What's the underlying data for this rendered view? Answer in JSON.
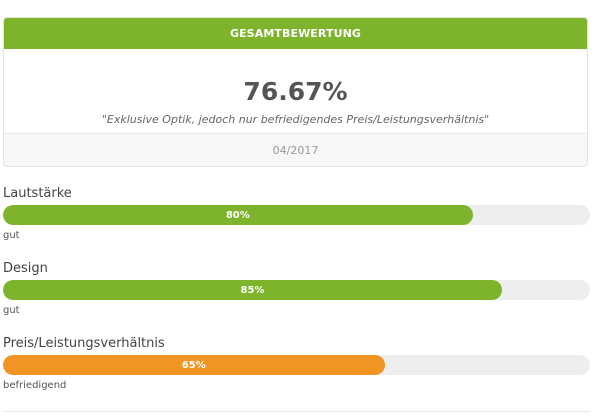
{
  "header": {
    "title": "GESAMTBEWERTUNG"
  },
  "summary": {
    "score": "76.67%",
    "verdict": "\"Exklusive Optik, jedoch nur befriedigendes Preis/Leistungsverhältnis\"",
    "date": "04/2017"
  },
  "colors": {
    "good": "#7db42c",
    "satisfactory": "#f29423",
    "track": "#eeeeee"
  },
  "ratings": [
    {
      "label": "Lautstärke",
      "value": 80,
      "value_label": "80%",
      "grade": "gut",
      "color": "#7db42c"
    },
    {
      "label": "Design",
      "value": 85,
      "value_label": "85%",
      "grade": "gut",
      "color": "#7db42c"
    },
    {
      "label": "Preis/Leistungsverhältnis",
      "value": 65,
      "value_label": "65%",
      "grade": "befriedigend",
      "color": "#f29423"
    }
  ]
}
